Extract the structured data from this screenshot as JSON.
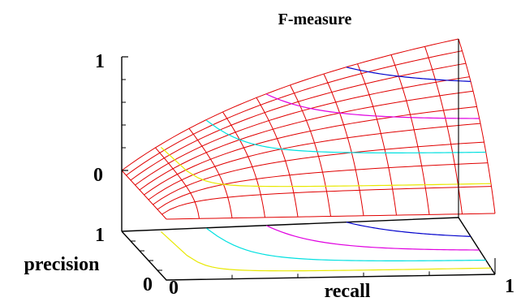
{
  "chart_data": {
    "type": "surface",
    "title": "F-measure",
    "function": "F = 2 * precision * recall / (precision + recall)",
    "xlabel": "recall",
    "ylabel": "precision",
    "zlabel": "",
    "x_ticks": [
      "0",
      "1"
    ],
    "y_ticks": [
      "0",
      "1"
    ],
    "z_ticks": [
      "0",
      "1"
    ],
    "xlim": [
      0,
      1
    ],
    "ylim": [
      0,
      1
    ],
    "zlim": [
      0,
      1
    ],
    "grid_divisions": 10,
    "contour_levels": [
      {
        "level": 0.2,
        "color": "#e8e800"
      },
      {
        "level": 0.4,
        "color": "#00e0e0"
      },
      {
        "level": 0.6,
        "color": "#e000e0"
      },
      {
        "level": 0.8,
        "color": "#0000cc"
      }
    ],
    "surface_color": "#e00000",
    "axis_color": "#000000"
  }
}
